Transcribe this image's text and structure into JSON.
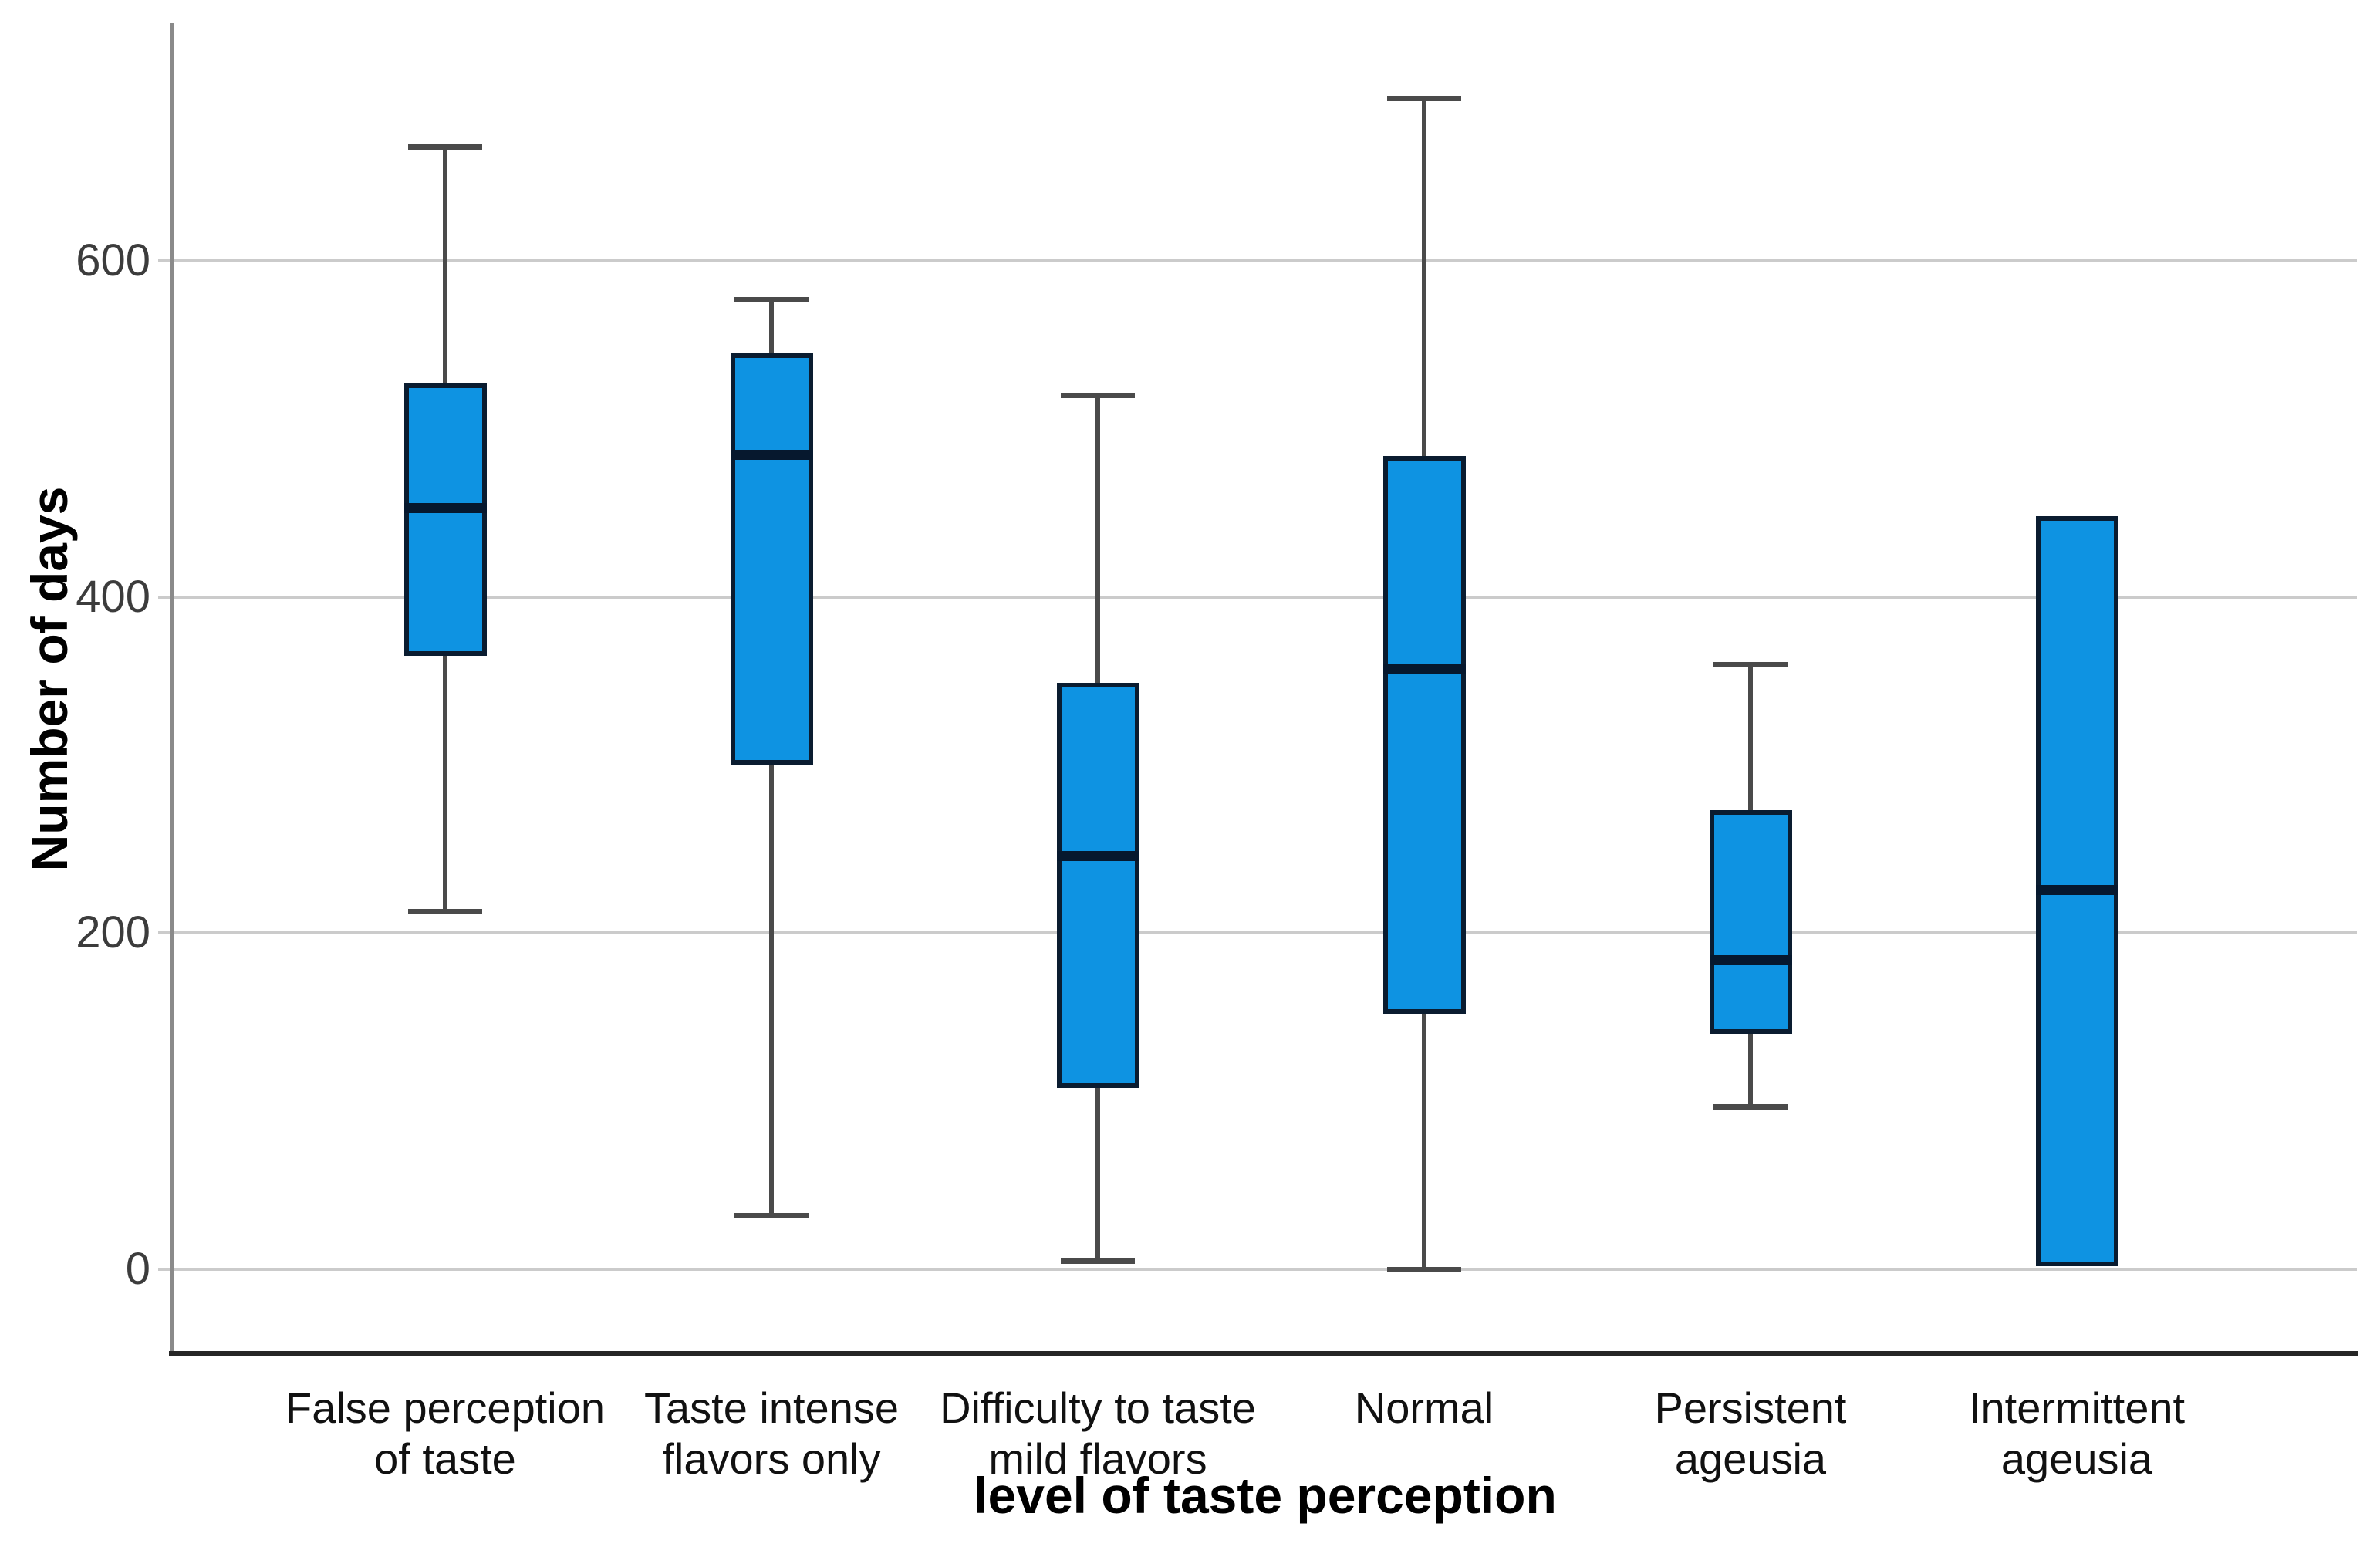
{
  "chart_data": {
    "type": "box",
    "title": "",
    "xlabel": "level of taste perception",
    "ylabel": "Number of days",
    "yticks": [
      0,
      200,
      400,
      600
    ],
    "ylim": [
      -60,
      730
    ],
    "grid": "horizontal",
    "legend": "none",
    "categories": [
      "False perception of taste",
      "Taste intense flavors only",
      "Difficulty to taste mild flavors",
      "Normal",
      "Persistent ageusia",
      "Intermittent ageusia"
    ],
    "series": [
      {
        "name": "False perception of taste",
        "label_lines": [
          "False perception",
          "of taste"
        ],
        "min": 213,
        "q1": 365,
        "median": 453,
        "q3": 527,
        "max": 668,
        "lower_whisker": true,
        "upper_whisker": true
      },
      {
        "name": "Taste intense flavors only",
        "label_lines": [
          "Taste intense",
          "flavors only"
        ],
        "min": 32,
        "q1": 300,
        "median": 485,
        "q3": 545,
        "max": 577,
        "lower_whisker": true,
        "upper_whisker": true
      },
      {
        "name": "Difficulty to taste mild flavors",
        "label_lines": [
          "Difficulty to taste",
          "mild flavors"
        ],
        "min": 5,
        "q1": 108,
        "median": 246,
        "q3": 349,
        "max": 520,
        "lower_whisker": true,
        "upper_whisker": true
      },
      {
        "name": "Normal",
        "label_lines": [
          "Normal"
        ],
        "min": 0,
        "q1": 152,
        "median": 357,
        "q3": 484,
        "max": 697,
        "lower_whisker": true,
        "upper_whisker": true
      },
      {
        "name": "Persistent ageusia",
        "label_lines": [
          "Persistent",
          "ageusia"
        ],
        "min": 97,
        "q1": 140,
        "median": 184,
        "q3": 273,
        "max": 360,
        "lower_whisker": true,
        "upper_whisker": true
      },
      {
        "name": "Intermittent ageusia",
        "label_lines": [
          "Intermittent",
          "ageusia"
        ],
        "min": 2,
        "q1": 2,
        "median": 226,
        "q3": 448,
        "max": 448,
        "lower_whisker": false,
        "upper_whisker": false
      }
    ]
  },
  "colors": {
    "box_fill": "#0E93E2",
    "box_border": "#0A1C30",
    "median": "#06182E",
    "whisker": "#4A4A4A",
    "gridline": "#CBCBCB",
    "y_axis": "#8A8A8A",
    "x_axis": "#262626",
    "tick_text": "#3C3C3C",
    "label_text": "#111111"
  }
}
